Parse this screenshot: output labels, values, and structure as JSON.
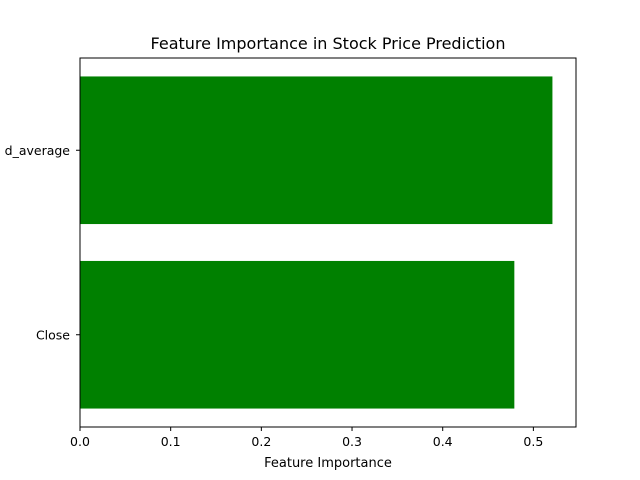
{
  "chart_data": {
    "type": "bar",
    "orientation": "horizontal",
    "title": "Feature Importance in Stock Price Prediction",
    "xlabel": "Feature Importance",
    "ylabel": "",
    "categories": [
      "Close",
      "d_average"
    ],
    "values": [
      0.479,
      0.521
    ],
    "xlim": [
      0,
      0.547
    ],
    "xticks": [
      "0.0",
      "0.1",
      "0.2",
      "0.3",
      "0.4",
      "0.5"
    ],
    "bar_color": "#008000",
    "grid": false,
    "legend": "none"
  }
}
